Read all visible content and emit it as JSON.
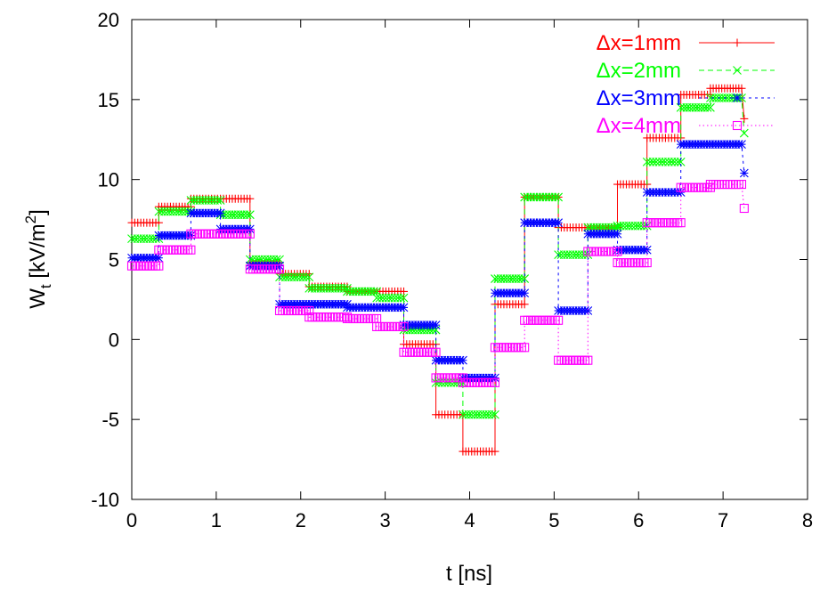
{
  "chart_data": {
    "type": "line",
    "title": "",
    "xlabel": "t [ns]",
    "ylabel_main": "W",
    "ylabel_sub": "t",
    "ylabel_unit_pre": " [kV/m",
    "ylabel_unit_sup": "2",
    "ylabel_unit_post": "]",
    "xlim": [
      0,
      8
    ],
    "ylim": [
      -10,
      20
    ],
    "xticks": [
      "0",
      "1",
      "2",
      "3",
      "4",
      "5",
      "6",
      "7",
      "8"
    ],
    "yticks": [
      "-10",
      "-5",
      "0",
      "5",
      "10",
      "15",
      "20"
    ],
    "grid": false,
    "legend_position": "top-right",
    "series": [
      {
        "name": "Δx=1mm",
        "color": "#ff0000",
        "marker": "plus",
        "dash": "none",
        "steps": [
          [
            0.0,
            0.32,
            7.3
          ],
          [
            0.32,
            0.7,
            8.3
          ],
          [
            0.7,
            1.4,
            8.8
          ],
          [
            1.4,
            1.75,
            4.8
          ],
          [
            1.75,
            2.1,
            4.1
          ],
          [
            2.1,
            2.55,
            3.3
          ],
          [
            2.55,
            3.22,
            3.0
          ],
          [
            3.22,
            3.6,
            -0.3
          ],
          [
            3.6,
            3.92,
            -4.7
          ],
          [
            3.92,
            4.3,
            -7.0
          ],
          [
            4.3,
            4.65,
            2.2
          ],
          [
            4.65,
            5.05,
            8.9
          ],
          [
            5.05,
            5.75,
            7.0
          ],
          [
            5.75,
            6.1,
            9.7
          ],
          [
            6.1,
            6.5,
            12.6
          ],
          [
            6.5,
            6.85,
            15.3
          ],
          [
            6.85,
            7.22,
            15.7
          ]
        ],
        "end": [
          7.25,
          13.8
        ]
      },
      {
        "name": "Δx=2mm",
        "color": "#00ff00",
        "marker": "cross",
        "dash": "6,4",
        "steps": [
          [
            0.0,
            0.32,
            6.3
          ],
          [
            0.32,
            0.7,
            8.0
          ],
          [
            0.7,
            1.05,
            8.7
          ],
          [
            1.05,
            1.4,
            7.8
          ],
          [
            1.4,
            1.75,
            5.0
          ],
          [
            1.75,
            2.1,
            3.9
          ],
          [
            2.1,
            2.55,
            3.2
          ],
          [
            2.55,
            2.9,
            3.0
          ],
          [
            2.9,
            3.22,
            2.6
          ],
          [
            3.22,
            3.6,
            0.6
          ],
          [
            3.6,
            3.92,
            -2.7
          ],
          [
            3.92,
            4.3,
            -4.7
          ],
          [
            4.3,
            4.65,
            3.8
          ],
          [
            4.65,
            5.05,
            8.9
          ],
          [
            5.05,
            5.4,
            5.3
          ],
          [
            5.4,
            5.75,
            7.0
          ],
          [
            5.75,
            6.1,
            7.1
          ],
          [
            6.1,
            6.5,
            11.1
          ],
          [
            6.5,
            6.85,
            14.5
          ],
          [
            6.85,
            7.22,
            15.1
          ]
        ],
        "end": [
          7.25,
          12.9
        ]
      },
      {
        "name": "Δx=3mm",
        "color": "#0000ff",
        "marker": "star",
        "dash": "3,4",
        "steps": [
          [
            0.0,
            0.32,
            5.1
          ],
          [
            0.32,
            0.7,
            6.5
          ],
          [
            0.7,
            1.05,
            7.9
          ],
          [
            1.05,
            1.4,
            6.9
          ],
          [
            1.4,
            1.75,
            4.6
          ],
          [
            1.75,
            2.55,
            2.2
          ],
          [
            2.55,
            3.22,
            2.0
          ],
          [
            3.22,
            3.6,
            0.9
          ],
          [
            3.6,
            3.92,
            -1.3
          ],
          [
            3.92,
            4.3,
            -2.4
          ],
          [
            4.3,
            4.65,
            2.9
          ],
          [
            4.65,
            5.05,
            7.3
          ],
          [
            5.05,
            5.4,
            1.8
          ],
          [
            5.4,
            5.75,
            6.6
          ],
          [
            5.75,
            6.1,
            5.6
          ],
          [
            6.1,
            6.5,
            9.2
          ],
          [
            6.5,
            7.22,
            12.2
          ]
        ],
        "end": [
          7.25,
          10.4
        ]
      },
      {
        "name": "Δx=4mm",
        "color": "#ff00ff",
        "marker": "square",
        "dash": "1.5,3",
        "steps": [
          [
            0.0,
            0.32,
            4.6
          ],
          [
            0.32,
            0.7,
            5.6
          ],
          [
            0.7,
            1.4,
            6.6
          ],
          [
            1.4,
            1.75,
            4.4
          ],
          [
            1.75,
            2.1,
            1.8
          ],
          [
            2.1,
            2.55,
            1.4
          ],
          [
            2.55,
            2.9,
            1.3
          ],
          [
            2.9,
            3.22,
            0.8
          ],
          [
            3.22,
            3.6,
            -0.8
          ],
          [
            3.6,
            3.92,
            -2.4
          ],
          [
            3.92,
            4.3,
            -2.7
          ],
          [
            4.3,
            4.65,
            -0.5
          ],
          [
            4.65,
            5.05,
            1.2
          ],
          [
            5.05,
            5.4,
            -1.3
          ],
          [
            5.4,
            5.75,
            5.5
          ],
          [
            5.75,
            6.1,
            4.8
          ],
          [
            6.1,
            6.5,
            7.3
          ],
          [
            6.5,
            6.85,
            9.5
          ],
          [
            6.85,
            7.22,
            9.7
          ]
        ],
        "end": [
          7.25,
          8.2
        ]
      }
    ]
  }
}
